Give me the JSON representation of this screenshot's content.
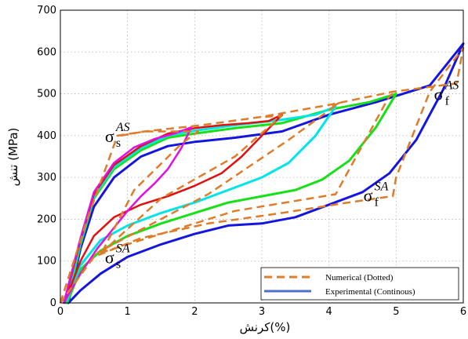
{
  "chart_data": {
    "type": "line",
    "xlabel": "کرنش(%)",
    "ylabel": "تنش (MPa)",
    "xlim": [
      0,
      6
    ],
    "ylim": [
      0,
      700
    ],
    "x_ticks": [
      "0",
      "1",
      "2",
      "3",
      "4",
      "5",
      "6"
    ],
    "y_ticks": [
      "0",
      "100",
      "200",
      "300",
      "400",
      "500",
      "600",
      "700"
    ],
    "grid": true,
    "legend_position": "bottom-right",
    "legend": [
      {
        "label": "Numerical (Dotted)",
        "color": "#E07B2A",
        "style": "dashed"
      },
      {
        "label": "Experimental (Continous)",
        "color": "#4F6FD0",
        "style": "solid"
      }
    ],
    "annotations": [
      {
        "id": "sigma-s-as",
        "symbol": "σ",
        "sub": "s",
        "sup": "AS",
        "x": 0.85,
        "y": 400
      },
      {
        "id": "sigma-f-as",
        "symbol": "σ",
        "sub": "f",
        "sup": "AS",
        "x": 5.75,
        "y": 500
      },
      {
        "id": "sigma-s-sa",
        "symbol": "σ",
        "sub": "s",
        "sup": "SA",
        "x": 0.85,
        "y": 110
      },
      {
        "id": "sigma-f-sa",
        "symbol": "σ",
        "sub": "f",
        "sup": "SA",
        "x": 4.7,
        "y": 258
      }
    ],
    "series": [
      {
        "color": "#1515E0",
        "style": "solid",
        "width": 3,
        "x": [
          0.12,
          0.3,
          0.5,
          0.8,
          1.2,
          1.6,
          2.0,
          2.6,
          3.3,
          4.0,
          4.7,
          5.1,
          5.5,
          6.0,
          5.7,
          5.3,
          4.9,
          4.5,
          4.0,
          3.5,
          3.0,
          2.5,
          2.0,
          1.5,
          1.0,
          0.6,
          0.3,
          0.12
        ],
        "y": [
          0,
          130,
          230,
          300,
          350,
          375,
          385,
          395,
          410,
          450,
          480,
          500,
          520,
          620,
          510,
          390,
          310,
          265,
          235,
          205,
          190,
          185,
          165,
          140,
          110,
          70,
          30,
          0
        ]
      },
      {
        "color": "#18E018",
        "style": "solid",
        "width": 3,
        "x": [
          0.1,
          0.3,
          0.5,
          0.8,
          1.2,
          1.6,
          2.0,
          2.6,
          3.3,
          4.0,
          4.6,
          5.0,
          4.7,
          4.3,
          3.9,
          3.5,
          3.0,
          2.5,
          2.0,
          1.5,
          1.0,
          0.6,
          0.3,
          0.1
        ],
        "y": [
          0,
          140,
          250,
          320,
          365,
          395,
          405,
          418,
          430,
          462,
          480,
          500,
          420,
          340,
          295,
          270,
          255,
          240,
          215,
          190,
          160,
          125,
          80,
          0
        ]
      },
      {
        "color": "#00E5E5",
        "style": "solid",
        "width": 3,
        "x": [
          0.08,
          0.3,
          0.5,
          0.8,
          1.2,
          1.6,
          2.0,
          2.6,
          3.3,
          3.8,
          4.1,
          3.8,
          3.4,
          3.0,
          2.5,
          2.0,
          1.5,
          1.0,
          0.6,
          0.3,
          0.08
        ],
        "y": [
          0,
          145,
          255,
          325,
          370,
          400,
          412,
          425,
          438,
          450,
          470,
          400,
          335,
          300,
          270,
          240,
          215,
          185,
          150,
          90,
          0
        ]
      },
      {
        "color": "#E01010",
        "style": "solid",
        "width": 2.5,
        "x": [
          0.06,
          0.3,
          0.5,
          0.8,
          1.2,
          1.6,
          2.0,
          2.4,
          2.8,
          3.1,
          3.3,
          3.0,
          2.7,
          2.4,
          2.0,
          1.6,
          1.2,
          0.8,
          0.5,
          0.3,
          0.06
        ],
        "y": [
          0,
          150,
          260,
          330,
          375,
          405,
          418,
          425,
          430,
          435,
          450,
          400,
          350,
          310,
          280,
          255,
          235,
          205,
          160,
          100,
          0
        ]
      },
      {
        "color": "#E010E0",
        "style": "solid",
        "width": 2.5,
        "x": [
          0.05,
          0.3,
          0.5,
          0.8,
          1.1,
          1.4,
          1.7,
          1.95,
          1.8,
          1.6,
          1.4,
          1.2,
          1.0,
          0.8,
          0.55,
          0.3,
          0.05
        ],
        "y": [
          0,
          155,
          265,
          335,
          372,
          392,
          405,
          420,
          370,
          320,
          285,
          255,
          220,
          180,
          130,
          70,
          0
        ]
      },
      {
        "color": "#E07B2A",
        "style": "dashed",
        "width": 2.5,
        "x": [
          0.0,
          0.4,
          0.85,
          1.25,
          2.1,
          3.0,
          4.05,
          4.95,
          5.9,
          6.0,
          5.5,
          5.0,
          4.95,
          4.8,
          4.2,
          3.3,
          2.2,
          1.2,
          0.5,
          0.0
        ],
        "y": [
          0,
          200,
          400,
          410,
          425,
          445,
          475,
          505,
          525,
          610,
          505,
          300,
          255,
          252,
          238,
          215,
          190,
          155,
          110,
          0
        ]
      },
      {
        "color": "#E07B2A",
        "style": "dashed",
        "width": 2.5,
        "x": [
          0.9,
          1.25,
          1.9,
          2.05,
          1.8,
          1.1,
          0.6
        ],
        "y": [
          400,
          410,
          410,
          410,
          380,
          270,
          115
        ]
      },
      {
        "color": "#E07B2A",
        "style": "dashed",
        "width": 2.5,
        "x": [
          3.05,
          3.3,
          2.6,
          1.5,
          0.6
        ],
        "y": [
          445,
          448,
          350,
          250,
          118
        ]
      },
      {
        "color": "#E07B2A",
        "style": "dashed",
        "width": 2.5,
        "x": [
          4.05,
          4.15,
          3.4,
          2.2,
          0.55
        ],
        "y": [
          470,
          478,
          390,
          260,
          120
        ]
      },
      {
        "color": "#E07B2A",
        "style": "dashed",
        "width": 2.5,
        "x": [
          4.95,
          4.9,
          4.1,
          2.6,
          0.5
        ],
        "y": [
          500,
          495,
          260,
          220,
          115
        ]
      }
    ]
  }
}
